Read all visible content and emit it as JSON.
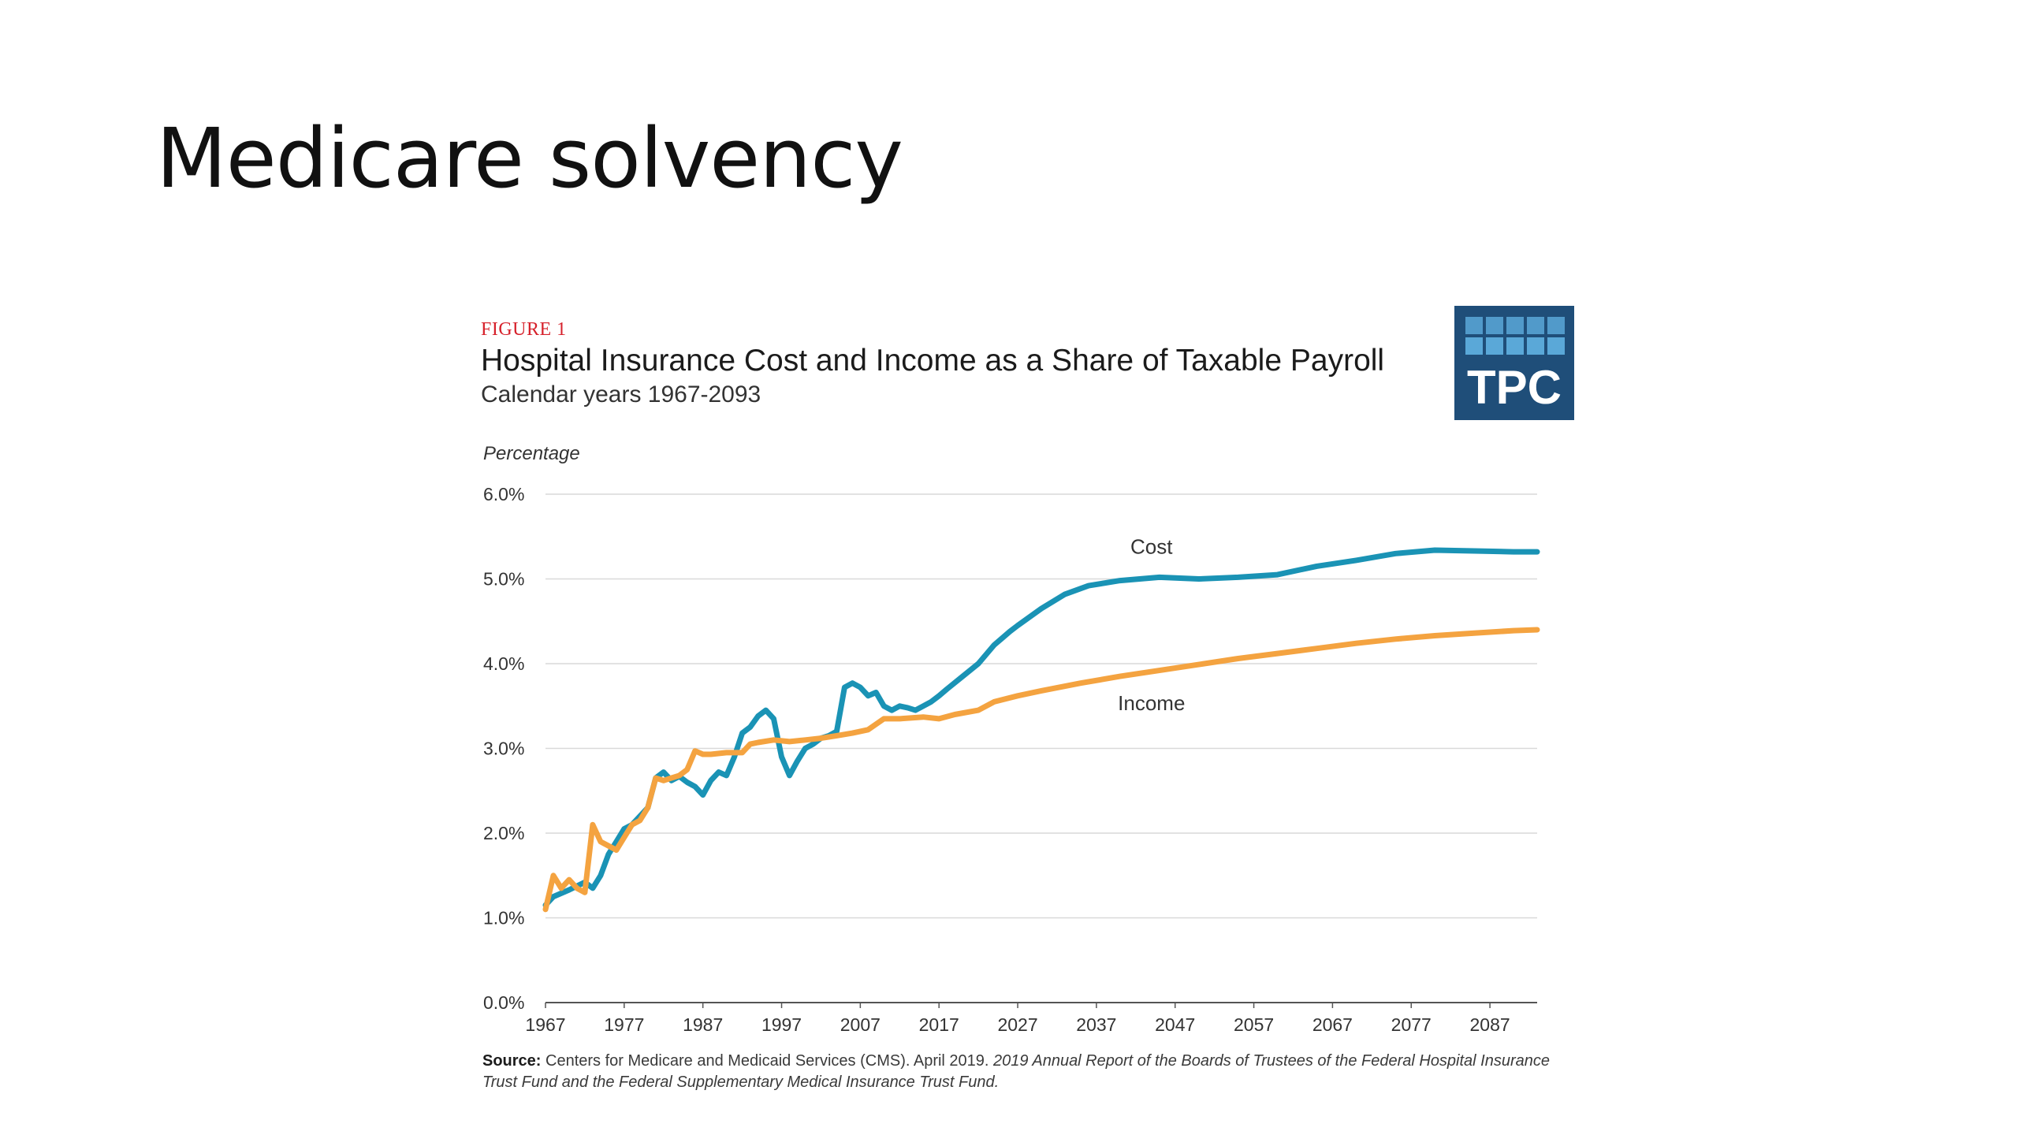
{
  "slide": {
    "title": "Medicare solvency"
  },
  "figure": {
    "label": "FIGURE 1",
    "title": "Hospital Insurance Cost and Income as a Share of Taxable Payroll",
    "subtitle": "Calendar years 1967-2093"
  },
  "logo": {
    "text": "TPC",
    "bg_color": "#1f4e79",
    "square_color": "#5aa8d8"
  },
  "source": {
    "label": "Source:",
    "text_plain": " Centers for Medicare and Medicaid Services (CMS). April 2019. ",
    "text_italic": "2019 Annual Report of the Boards of Trustees of the Federal Hospital Insurance Trust Fund and the Federal Supplementary Medical Insurance Trust Fund."
  },
  "colors": {
    "cost": "#1a93b5",
    "income": "#f4a340",
    "grid": "#d9d9d9",
    "axis": "#555555"
  },
  "chart_data": {
    "type": "line",
    "ylabel": "Percentage",
    "xlabel": "",
    "ylim": [
      0,
      6
    ],
    "xlim": [
      1967,
      2093
    ],
    "yticks": [
      "0.0%",
      "1.0%",
      "2.0%",
      "3.0%",
      "4.0%",
      "5.0%",
      "6.0%"
    ],
    "yticks_values": [
      0,
      1,
      2,
      3,
      4,
      5,
      6
    ],
    "xticks": [
      "1967",
      "1977",
      "1987",
      "1997",
      "2007",
      "2017",
      "2027",
      "2037",
      "2047",
      "2057",
      "2067",
      "2077",
      "2087"
    ],
    "grid": true,
    "series": [
      {
        "name": "Cost",
        "x": [
          1967,
          1968,
          1970,
          1972,
          1973,
          1974,
          1975,
          1976,
          1977,
          1978,
          1980,
          1981,
          1982,
          1983,
          1984,
          1985,
          1986,
          1987,
          1988,
          1989,
          1990,
          1991,
          1992,
          1993,
          1994,
          1995,
          1996,
          1997,
          1998,
          1999,
          2000,
          2001,
          2002,
          2003,
          2004,
          2005,
          2006,
          2007,
          2008,
          2009,
          2010,
          2011,
          2012,
          2013,
          2014,
          2015,
          2016,
          2017,
          2018,
          2020,
          2022,
          2024,
          2025,
          2026,
          2027,
          2030,
          2033,
          2036,
          2040,
          2045,
          2050,
          2055,
          2060,
          2065,
          2070,
          2075,
          2080,
          2085,
          2090,
          2093
        ],
        "values": [
          1.15,
          1.25,
          1.33,
          1.42,
          1.35,
          1.5,
          1.75,
          1.9,
          2.05,
          2.1,
          2.3,
          2.65,
          2.72,
          2.62,
          2.67,
          2.6,
          2.55,
          2.45,
          2.62,
          2.72,
          2.68,
          2.9,
          3.18,
          3.25,
          3.38,
          3.45,
          3.35,
          2.9,
          2.68,
          2.85,
          3.0,
          3.05,
          3.12,
          3.15,
          3.2,
          3.72,
          3.77,
          3.72,
          3.62,
          3.66,
          3.5,
          3.45,
          3.5,
          3.48,
          3.45,
          3.5,
          3.55,
          3.62,
          3.7,
          3.85,
          4.0,
          4.22,
          4.3,
          4.38,
          4.45,
          4.65,
          4.82,
          4.92,
          4.98,
          5.02,
          5.0,
          5.02,
          5.05,
          5.15,
          5.22,
          5.3,
          5.34,
          5.33,
          5.32,
          5.32
        ]
      },
      {
        "name": "Income",
        "x": [
          1967,
          1968,
          1969,
          1970,
          1971,
          1972,
          1973,
          1974,
          1975,
          1976,
          1977,
          1978,
          1979,
          1980,
          1981,
          1982,
          1983,
          1984,
          1985,
          1986,
          1987,
          1988,
          1990,
          1992,
          1993,
          1994,
          1996,
          1998,
          2000,
          2002,
          2004,
          2006,
          2008,
          2010,
          2012,
          2015,
          2017,
          2019,
          2022,
          2024,
          2027,
          2030,
          2035,
          2040,
          2045,
          2050,
          2055,
          2060,
          2065,
          2070,
          2075,
          2080,
          2085,
          2090,
          2093
        ],
        "values": [
          1.1,
          1.5,
          1.35,
          1.45,
          1.35,
          1.3,
          2.1,
          1.9,
          1.85,
          1.8,
          1.95,
          2.1,
          2.15,
          2.3,
          2.65,
          2.62,
          2.65,
          2.68,
          2.75,
          2.97,
          2.93,
          2.93,
          2.95,
          2.95,
          3.05,
          3.07,
          3.1,
          3.08,
          3.1,
          3.12,
          3.15,
          3.18,
          3.22,
          3.35,
          3.35,
          3.37,
          3.35,
          3.4,
          3.45,
          3.55,
          3.62,
          3.68,
          3.77,
          3.85,
          3.92,
          3.99,
          4.06,
          4.12,
          4.18,
          4.24,
          4.29,
          4.33,
          4.36,
          4.39,
          4.4
        ]
      }
    ],
    "annotations": [
      {
        "text": "Cost",
        "x": 2044,
        "y": 5.3
      },
      {
        "text": "Income",
        "x": 2044,
        "y": 3.45
      }
    ]
  }
}
